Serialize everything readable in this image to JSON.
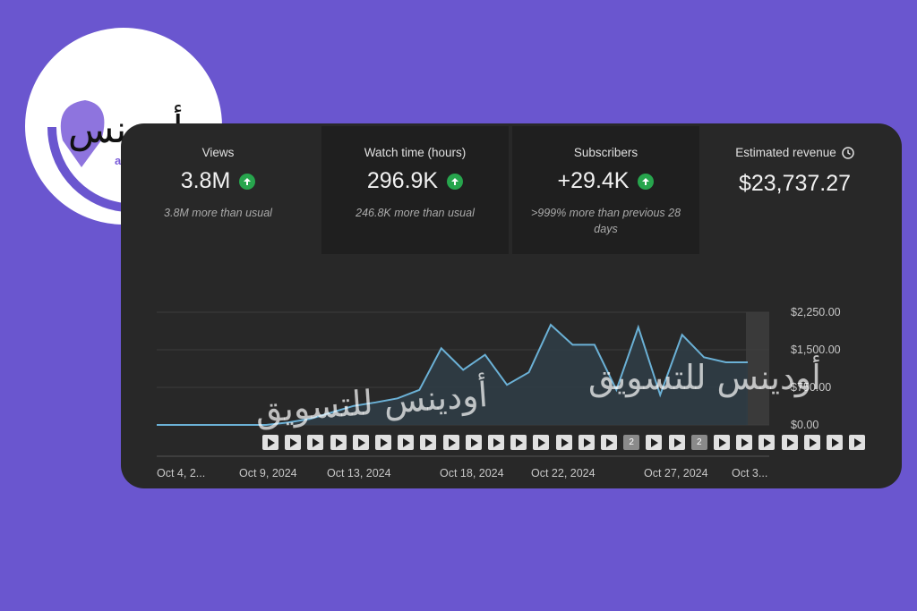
{
  "metrics": [
    {
      "label": "Views",
      "value": "3.8M",
      "note": "3.8M more than usual",
      "trend": "up"
    },
    {
      "label": "Watch time (hours)",
      "value": "296.9K",
      "note": "246.8K more than usual",
      "trend": "up"
    },
    {
      "label": "Subscribers",
      "value": "+29.4K",
      "note": ">999% more than previous 28 days",
      "trend": "up"
    },
    {
      "label": "Estimated revenue",
      "value": "$23,737.27",
      "note": "",
      "icon": "clock-icon"
    }
  ],
  "chart_data": {
    "type": "area",
    "x": [
      "Oct 4",
      "Oct 5",
      "Oct 6",
      "Oct 7",
      "Oct 8",
      "Oct 9",
      "Oct 10",
      "Oct 11",
      "Oct 12",
      "Oct 13",
      "Oct 14",
      "Oct 15",
      "Oct 16",
      "Oct 17",
      "Oct 18",
      "Oct 19",
      "Oct 20",
      "Oct 21",
      "Oct 22",
      "Oct 23",
      "Oct 24",
      "Oct 25",
      "Oct 26",
      "Oct 27",
      "Oct 28",
      "Oct 29",
      "Oct 30",
      "Oct 31"
    ],
    "series": [
      {
        "values": [
          0,
          0,
          0,
          0,
          0,
          0,
          50,
          120,
          250,
          380,
          450,
          530,
          700,
          1530,
          1100,
          1400,
          800,
          1050,
          2000,
          1600,
          1600,
          700,
          1950,
          600,
          1800,
          1350,
          1250,
          1250
        ]
      }
    ],
    "x_tick_labels": [
      "Oct 4, 2...",
      "Oct 9, 2024",
      "Oct 13, 2024",
      "Oct 18, 2024",
      "Oct 22, 2024",
      "Oct 27, 2024",
      "Oct 3..."
    ],
    "y_tick_labels": [
      "$2,250.00",
      "$1,500.00",
      "$750.00",
      "$0.00"
    ],
    "ylim": [
      0,
      2250
    ],
    "grid": true,
    "line_color": "#6bb1d6",
    "fill_color": "#2f3c45"
  },
  "markers": [
    "",
    "",
    "",
    "",
    "",
    "",
    "",
    "",
    "",
    "",
    "",
    "",
    "",
    "",
    "",
    "",
    "2",
    "",
    "",
    "2",
    "",
    "",
    "",
    "",
    "",
    "",
    ""
  ],
  "watermarks": [
    "أودينس للتسويق",
    "أودينس للتسويق",
    "أودينس للتسويق"
  ],
  "logo": {
    "name": "أودينس",
    "sub": "audience",
    "accent": "#7a5cd8"
  }
}
